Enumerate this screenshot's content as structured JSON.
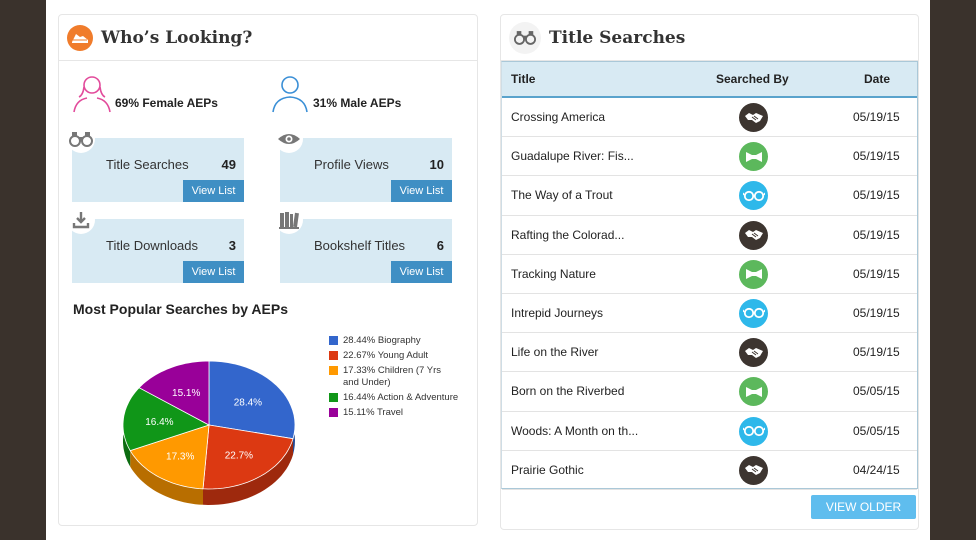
{
  "left_panel": {
    "title": "Who’s Looking?",
    "female_label": "69% Female AEPs",
    "male_label": "31% Male AEPs",
    "stats": [
      {
        "label": "Title Searches",
        "value": "49",
        "button": "View List",
        "icon": "binoculars-icon"
      },
      {
        "label": "Profile Views",
        "value": "10",
        "button": "View List",
        "icon": "eye-icon"
      },
      {
        "label": "Title Downloads",
        "value": "3",
        "button": "View List",
        "icon": "download-icon"
      },
      {
        "label": "Bookshelf Titles",
        "value": "6",
        "button": "View List",
        "icon": "books-icon"
      }
    ],
    "section_title": "Most Popular Searches by AEPs"
  },
  "chart_data": {
    "type": "pie",
    "title": "Most Popular Searches by AEPs",
    "slices": [
      {
        "name": "Biography",
        "legend": "28.44% Biography",
        "label": "28.4%",
        "value": 28.44,
        "color": "#3366cc"
      },
      {
        "name": "Young Adult",
        "legend": "22.67% Young Adult",
        "label": "22.7%",
        "value": 22.67,
        "color": "#dc3912"
      },
      {
        "name": "Children (7 Yrs and Under)",
        "legend": "17.33% Children (7 Yrs and Under)",
        "label": "17.3%",
        "value": 17.33,
        "color": "#ff9900"
      },
      {
        "name": "Action & Adventure",
        "legend": "16.44% Action & Adventure",
        "label": "16.4%",
        "value": 16.44,
        "color": "#109618"
      },
      {
        "name": "Travel",
        "legend": "15.11% Travel",
        "label": "15.1%",
        "value": 15.11,
        "color": "#990099"
      }
    ],
    "legend_position": "right"
  },
  "right_panel": {
    "title": "Title Searches",
    "headers": {
      "title": "Title",
      "by": "Searched By",
      "date": "Date"
    },
    "rows": [
      {
        "title": "Crossing America",
        "by": "handshake-icon",
        "date": "05/19/15"
      },
      {
        "title": "Guadalupe River: Fis...",
        "by": "bowtie-icon",
        "date": "05/19/15"
      },
      {
        "title": "The Way of a Trout",
        "by": "glasses-icon",
        "date": "05/19/15"
      },
      {
        "title": "Rafting the Colorad...",
        "by": "handshake-icon",
        "date": "05/19/15"
      },
      {
        "title": "Tracking Nature",
        "by": "bowtie-icon",
        "date": "05/19/15"
      },
      {
        "title": "Intrepid Journeys",
        "by": "glasses-icon",
        "date": "05/19/15"
      },
      {
        "title": "Life on the River",
        "by": "handshake-icon",
        "date": "05/19/15"
      },
      {
        "title": "Born on the Riverbed",
        "by": "bowtie-icon",
        "date": "05/05/15"
      },
      {
        "title": "Woods: A Month on th...",
        "by": "glasses-icon",
        "date": "05/05/15"
      },
      {
        "title": "Prairie Gothic",
        "by": "handshake-icon",
        "date": "04/24/15"
      }
    ],
    "older_button": "VIEW OLDER"
  },
  "colors": {
    "handshake": "#3d3530",
    "bowtie": "#5cb85c",
    "glasses": "#2eb8ea",
    "button_blue": "#3f8fc4",
    "stat_bg": "#d8eaf3"
  }
}
